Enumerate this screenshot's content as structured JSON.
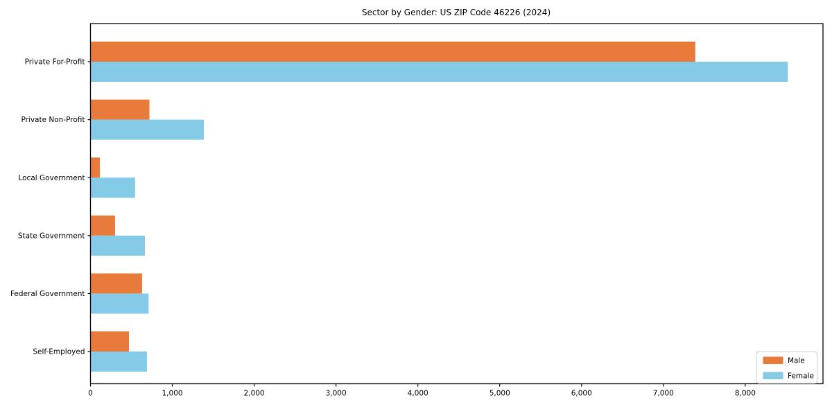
{
  "chart_data": {
    "type": "bar",
    "orientation": "horizontal",
    "title": "Sector by Gender: US ZIP Code 46226 (2024)",
    "categories": [
      "Private For-Profit",
      "Private Non-Profit",
      "Local Government",
      "State Government",
      "Federal Government",
      "Self-Employed"
    ],
    "series": [
      {
        "name": "Male",
        "color": "#e87a3b",
        "values": [
          7390,
          720,
          115,
          300,
          630,
          470
        ]
      },
      {
        "name": "Female",
        "color": "#85cbe8",
        "values": [
          8520,
          1385,
          545,
          665,
          710,
          690
        ]
      }
    ],
    "xlabel": "",
    "ylabel": "",
    "xlim": [
      0,
      8950
    ],
    "xticks": [
      0,
      1000,
      2000,
      3000,
      4000,
      5000,
      6000,
      7000,
      8000
    ],
    "xtick_labels": [
      "0",
      "1,000",
      "2,000",
      "3,000",
      "4,000",
      "5,000",
      "6,000",
      "7,000",
      "8,000"
    ],
    "grid": false,
    "legend": {
      "position": "lower right"
    },
    "colors": {
      "frame": "#000000",
      "background": "#ffffff",
      "legend_border": "#cccccc",
      "legend_background": "#ffffff"
    }
  }
}
